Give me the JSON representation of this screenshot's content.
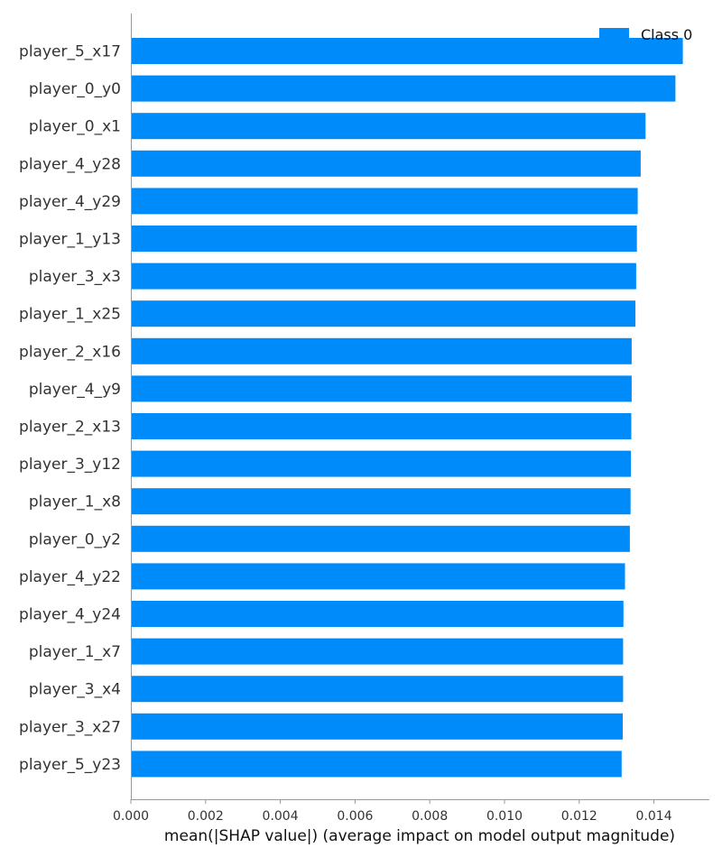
{
  "chart_data": {
    "type": "bar",
    "orientation": "horizontal",
    "categories": [
      "player_5_x17",
      "player_0_y0",
      "player_0_x1",
      "player_4_y28",
      "player_4_y29",
      "player_1_y13",
      "player_3_x3",
      "player_1_x25",
      "player_2_x16",
      "player_4_y9",
      "player_2_x13",
      "player_3_y12",
      "player_1_x8",
      "player_0_y2",
      "player_4_y22",
      "player_4_y24",
      "player_1_x7",
      "player_3_x4",
      "player_3_x27",
      "player_5_y23"
    ],
    "series": [
      {
        "name": "Class 0",
        "color": "#008bfb",
        "values": [
          0.01475,
          0.01455,
          0.01375,
          0.01362,
          0.01354,
          0.01352,
          0.0135,
          0.01348,
          0.01338,
          0.01338,
          0.01337,
          0.01336,
          0.01335,
          0.01333,
          0.0132,
          0.01316,
          0.01315,
          0.01315,
          0.01314,
          0.01311
        ]
      }
    ],
    "xlabel": "mean(|SHAP value|) (average impact on model output magnitude)",
    "ylabel": "",
    "xlim": [
      0,
      0.0155
    ],
    "xticks": [
      "0.000",
      "0.002",
      "0.004",
      "0.006",
      "0.008",
      "0.010",
      "0.012",
      "0.014"
    ],
    "grid": false,
    "legend_position": "top-right"
  }
}
